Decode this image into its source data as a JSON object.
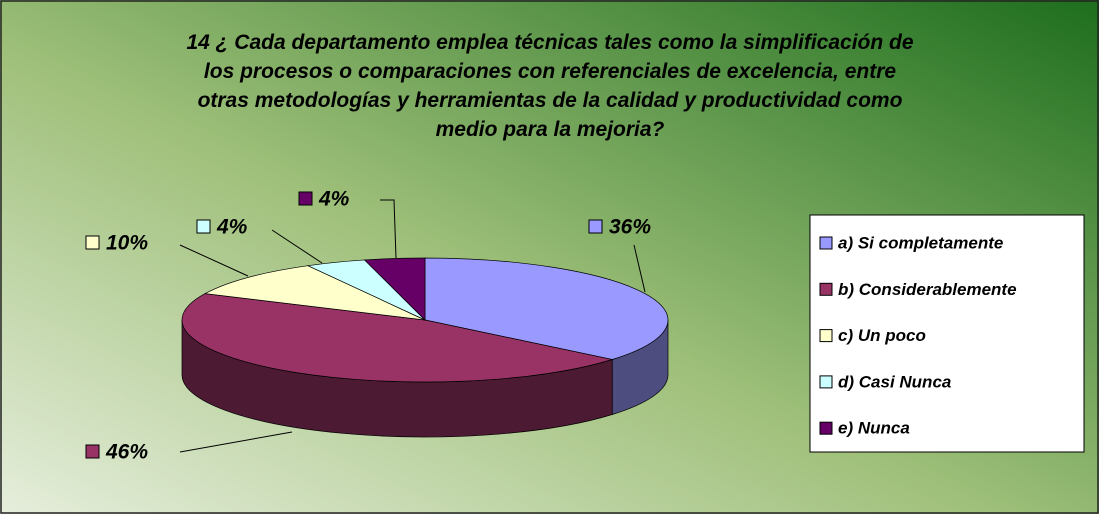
{
  "chart_data": {
    "type": "pie3d",
    "title": "14 ¿ Cada departamento emplea técnicas tales como la simplificación de los procesos o comparaciones con referenciales de excelencia, entre otras metodologías y herramientas de la calidad y productividad como medio para la mejoria?",
    "categories": [
      "a) Si completamente",
      "b) Considerablemente",
      "c) Un poco",
      "d) Casi Nunca",
      "e) Nunca"
    ],
    "values": [
      36,
      46,
      10,
      4,
      4
    ],
    "value_labels": [
      "36%",
      "46%",
      "10%",
      "4%",
      "4%"
    ],
    "colors": [
      "#9999ff",
      "#993366",
      "#ffffcc",
      "#ccffff",
      "#660066"
    ],
    "legend": "right"
  }
}
